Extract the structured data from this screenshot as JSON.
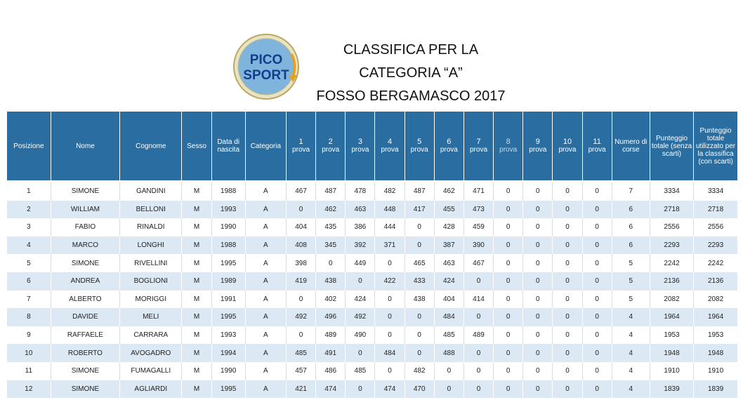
{
  "logo": {
    "line1": "PICO",
    "line2": "SPORT",
    "icon": "pico-sport-logo"
  },
  "title": {
    "line1": "CLASSIFICA PER LA",
    "line2": "CATEGORIA “A”",
    "line3": "FOSSO BERGAMASCO 2017"
  },
  "colors": {
    "header_bg": "#2a6ea1",
    "row_alt_bg": "#dce8f3"
  },
  "table": {
    "headers": {
      "posizione": "Posizione",
      "nome": "Nome",
      "cognome": "Cognome",
      "sesso": "Sesso",
      "data_nascita": "Data di nascita",
      "categoria": "Categoria",
      "prove": [
        {
          "n": "1",
          "label": "prova"
        },
        {
          "n": "2",
          "label": "prova"
        },
        {
          "n": "3",
          "label": "prova"
        },
        {
          "n": "4",
          "label": "prova"
        },
        {
          "n": "5",
          "label": "prova"
        },
        {
          "n": "6",
          "label": "prova"
        },
        {
          "n": "7",
          "label": "prova"
        },
        {
          "n": "8",
          "label": "prova"
        },
        {
          "n": "9",
          "label": "prova"
        },
        {
          "n": "10",
          "label": "prova"
        },
        {
          "n": "11",
          "label": "prova"
        }
      ],
      "numero_corse": "Numero di corse",
      "punteggio_totale": "Punteggio totale (senza scarti)",
      "punteggio_classifica": "Punteggio totale utilizzato per la classifica (con scarti)"
    },
    "rows": [
      {
        "pos": "1",
        "nome": "SIMONE",
        "cognome": "GANDINI",
        "sesso": "M",
        "anno": "1988",
        "cat": "A",
        "prove": [
          "467",
          "487",
          "478",
          "482",
          "487",
          "462",
          "471",
          "0",
          "0",
          "0",
          "0"
        ],
        "corse": "7",
        "totale": "3334",
        "classifica": "3334"
      },
      {
        "pos": "2",
        "nome": "WILLIAM",
        "cognome": "BELLONI",
        "sesso": "M",
        "anno": "1993",
        "cat": "A",
        "prove": [
          "0",
          "462",
          "463",
          "448",
          "417",
          "455",
          "473",
          "0",
          "0",
          "0",
          "0"
        ],
        "corse": "6",
        "totale": "2718",
        "classifica": "2718"
      },
      {
        "pos": "3",
        "nome": "FABIO",
        "cognome": "RINALDI",
        "sesso": "M",
        "anno": "1990",
        "cat": "A",
        "prove": [
          "404",
          "435",
          "386",
          "444",
          "0",
          "428",
          "459",
          "0",
          "0",
          "0",
          "0"
        ],
        "corse": "6",
        "totale": "2556",
        "classifica": "2556"
      },
      {
        "pos": "4",
        "nome": "MARCO",
        "cognome": "LONGHI",
        "sesso": "M",
        "anno": "1988",
        "cat": "A",
        "prove": [
          "408",
          "345",
          "392",
          "371",
          "0",
          "387",
          "390",
          "0",
          "0",
          "0",
          "0"
        ],
        "corse": "6",
        "totale": "2293",
        "classifica": "2293"
      },
      {
        "pos": "5",
        "nome": "SIMONE",
        "cognome": "RIVELLINI",
        "sesso": "M",
        "anno": "1995",
        "cat": "A",
        "prove": [
          "398",
          "0",
          "449",
          "0",
          "465",
          "463",
          "467",
          "0",
          "0",
          "0",
          "0"
        ],
        "corse": "5",
        "totale": "2242",
        "classifica": "2242"
      },
      {
        "pos": "6",
        "nome": "ANDREA",
        "cognome": "BOGLIONI",
        "sesso": "M",
        "anno": "1989",
        "cat": "A",
        "prove": [
          "419",
          "438",
          "0",
          "422",
          "433",
          "424",
          "0",
          "0",
          "0",
          "0",
          "0"
        ],
        "corse": "5",
        "totale": "2136",
        "classifica": "2136"
      },
      {
        "pos": "7",
        "nome": "ALBERTO",
        "cognome": "MORIGGI",
        "sesso": "M",
        "anno": "1991",
        "cat": "A",
        "prove": [
          "0",
          "402",
          "424",
          "0",
          "438",
          "404",
          "414",
          "0",
          "0",
          "0",
          "0"
        ],
        "corse": "5",
        "totale": "2082",
        "classifica": "2082"
      },
      {
        "pos": "8",
        "nome": "DAVIDE",
        "cognome": "MELI",
        "sesso": "M",
        "anno": "1995",
        "cat": "A",
        "prove": [
          "492",
          "496",
          "492",
          "0",
          "0",
          "484",
          "0",
          "0",
          "0",
          "0",
          "0"
        ],
        "corse": "4",
        "totale": "1964",
        "classifica": "1964"
      },
      {
        "pos": "9",
        "nome": "RAFFAELE",
        "cognome": "CARRARA",
        "sesso": "M",
        "anno": "1993",
        "cat": "A",
        "prove": [
          "0",
          "489",
          "490",
          "0",
          "0",
          "485",
          "489",
          "0",
          "0",
          "0",
          "0"
        ],
        "corse": "4",
        "totale": "1953",
        "classifica": "1953"
      },
      {
        "pos": "10",
        "nome": "ROBERTO",
        "cognome": "AVOGADRO",
        "sesso": "M",
        "anno": "1994",
        "cat": "A",
        "prove": [
          "485",
          "491",
          "0",
          "484",
          "0",
          "488",
          "0",
          "0",
          "0",
          "0",
          "0"
        ],
        "corse": "4",
        "totale": "1948",
        "classifica": "1948"
      },
      {
        "pos": "11",
        "nome": "SIMONE",
        "cognome": "FUMAGALLI",
        "sesso": "M",
        "anno": "1990",
        "cat": "A",
        "prove": [
          "457",
          "486",
          "485",
          "0",
          "482",
          "0",
          "0",
          "0",
          "0",
          "0",
          "0"
        ],
        "corse": "4",
        "totale": "1910",
        "classifica": "1910"
      },
      {
        "pos": "12",
        "nome": "SIMONE",
        "cognome": "AGLIARDI",
        "sesso": "M",
        "anno": "1995",
        "cat": "A",
        "prove": [
          "421",
          "474",
          "0",
          "474",
          "470",
          "0",
          "0",
          "0",
          "0",
          "0",
          "0"
        ],
        "corse": "4",
        "totale": "1839",
        "classifica": "1839"
      }
    ]
  }
}
